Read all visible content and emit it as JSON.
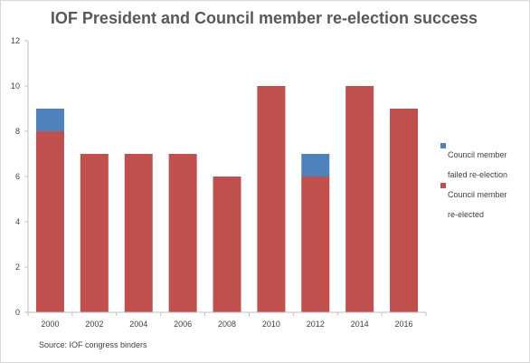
{
  "chart_data": {
    "type": "bar",
    "stacked": true,
    "title": "IOF President and Council member re-election success",
    "xlabel": "",
    "ylabel": "",
    "categories": [
      "2000",
      "2002",
      "2004",
      "2006",
      "2008",
      "2010",
      "2012",
      "2014",
      "2016"
    ],
    "series": [
      {
        "name": "Council member re-elected",
        "values": [
          8,
          7,
          7,
          7,
          6,
          10,
          6,
          10,
          9
        ],
        "color": "#c0504d"
      },
      {
        "name": "Council member failed re-election",
        "values": [
          1,
          0,
          0,
          0,
          0,
          0,
          1,
          0,
          0
        ],
        "color": "#4f81bd"
      }
    ],
    "ylim": [
      0,
      12
    ],
    "yticks": [
      0,
      2,
      4,
      6,
      8,
      10,
      12
    ],
    "grid": false,
    "legend_position": "right"
  },
  "legend": {
    "failed_line1": "Council member",
    "failed_line2": "failed re-election",
    "reelected_line1": "Council member",
    "reelected_line2": "re-elected"
  },
  "source_note": "Source:  IOF congress binders"
}
